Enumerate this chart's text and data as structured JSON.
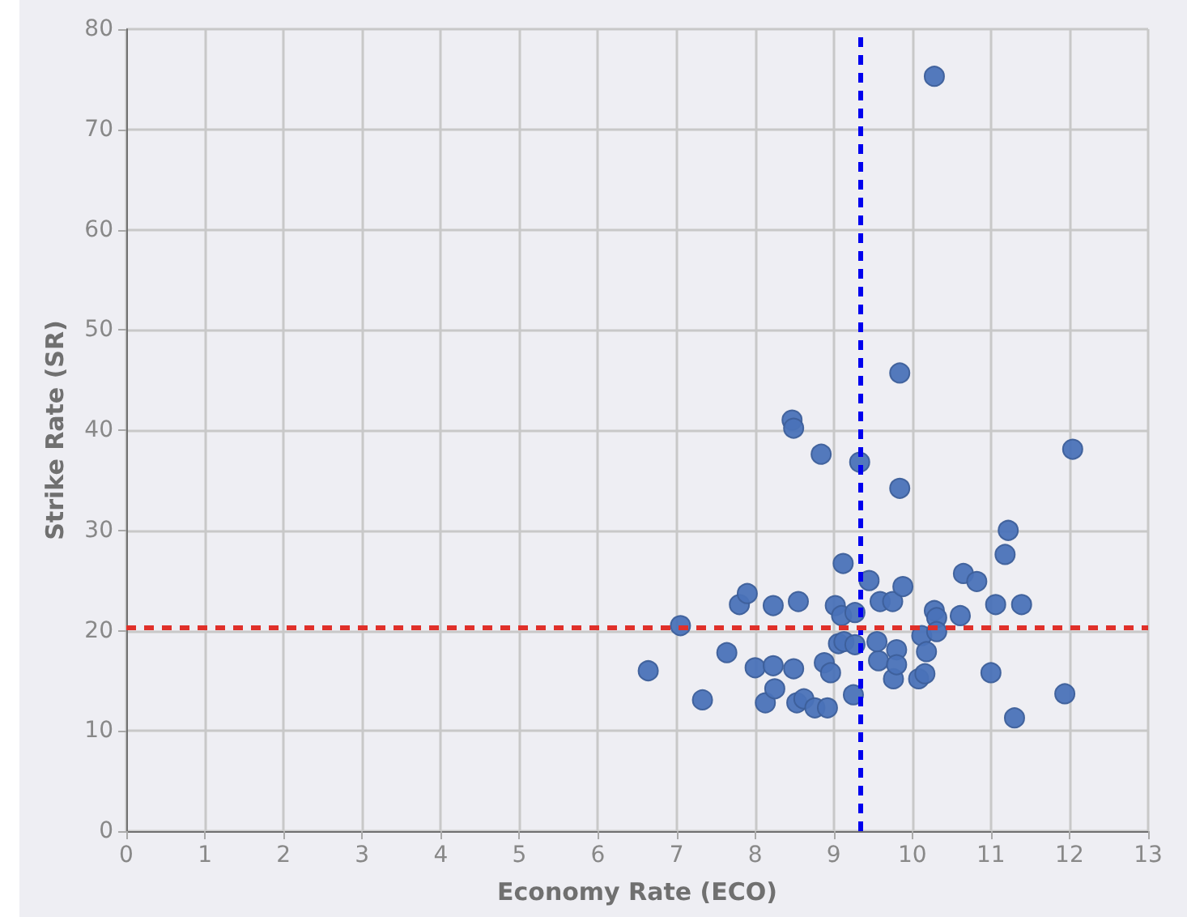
{
  "chart_data": {
    "type": "scatter",
    "xlabel": "Economy Rate (ECO)",
    "ylabel": "Strike Rate (SR)",
    "x": [
      6.64,
      7.05,
      7.33,
      7.64,
      7.8,
      7.9,
      8.0,
      8.13,
      8.23,
      8.25,
      8.23,
      8.49,
      8.47,
      8.49,
      8.53,
      8.55,
      8.62,
      8.76,
      8.84,
      8.88,
      8.92,
      8.96,
      9.02,
      9.06,
      9.12,
      9.1,
      9.27,
      9.25,
      9.13,
      9.33,
      9.27,
      9.45,
      9.59,
      9.57,
      9.55,
      9.75,
      9.76,
      9.8,
      9.8,
      9.88,
      9.84,
      9.84,
      10.08,
      10.12,
      10.16,
      10.18,
      10.28,
      10.31,
      10.31,
      10.28,
      10.65,
      10.61,
      10.82,
      11.0,
      11.06,
      11.18,
      11.22,
      11.3,
      11.39,
      11.94,
      12.04
    ],
    "series": [
      {
        "color": "#4a72b8",
        "values": [
          16.0,
          20.5,
          13.1,
          17.8,
          22.6,
          23.7,
          16.3,
          12.8,
          16.5,
          14.2,
          22.5,
          16.2,
          41.0,
          40.2,
          12.8,
          22.9,
          13.2,
          12.3,
          37.6,
          16.8,
          12.3,
          15.8,
          22.5,
          18.7,
          26.7,
          21.5,
          21.8,
          13.6,
          18.9,
          36.8,
          18.6,
          25.0,
          22.9,
          17.0,
          18.9,
          22.9,
          15.2,
          18.1,
          16.6,
          24.4,
          34.2,
          45.7,
          15.2,
          19.5,
          15.7,
          17.9,
          22.0,
          21.3,
          19.9,
          75.3,
          25.7,
          21.5,
          24.9,
          15.8,
          22.6,
          27.6,
          30.0,
          11.3,
          22.6,
          13.7,
          38.1
        ]
      }
    ],
    "xlim": [
      0,
      13
    ],
    "xticks": [
      0,
      1,
      2,
      3,
      4,
      5,
      6,
      7,
      8,
      9,
      10,
      11,
      12,
      13
    ],
    "ylim": [
      0,
      80
    ],
    "yticks": [
      0,
      10,
      20,
      30,
      40,
      50,
      60,
      70,
      80
    ],
    "grid": true,
    "marker": "circle",
    "ref_lines": [
      {
        "axis": "x",
        "value": 9.33,
        "color": "#0000ee",
        "line_style": "dashed"
      },
      {
        "axis": "y",
        "value": 20.4,
        "color": "#e0302a",
        "line_style": "dashed"
      }
    ]
  }
}
